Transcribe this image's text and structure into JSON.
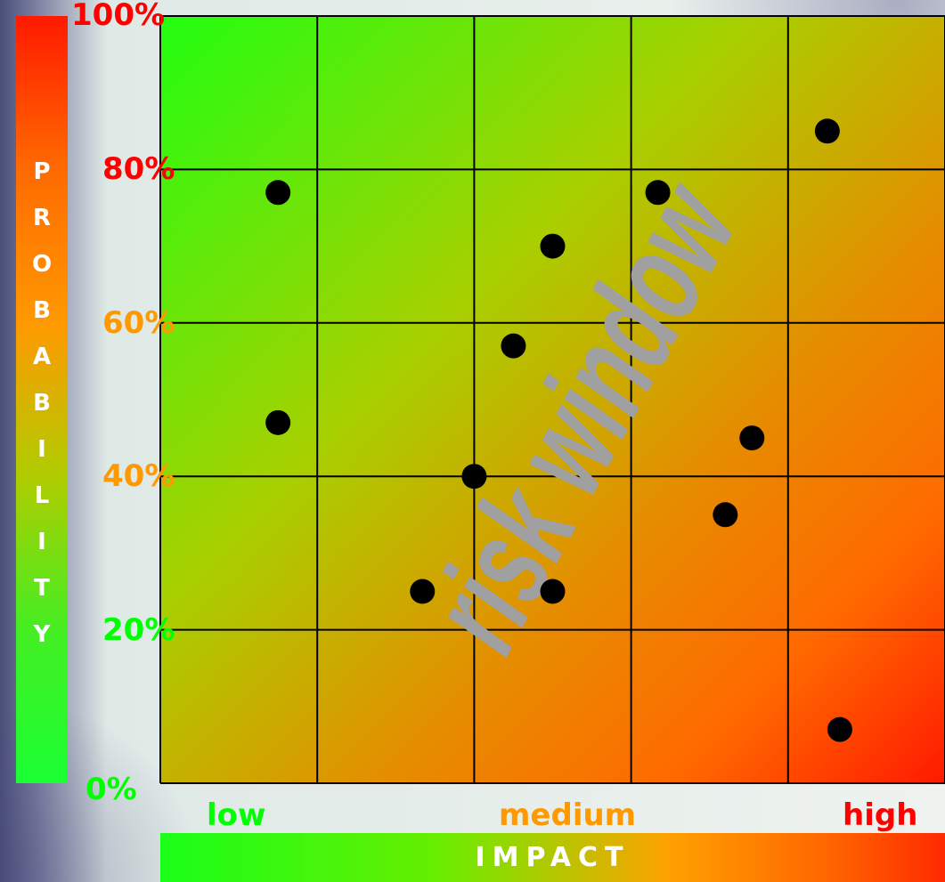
{
  "chart_data": {
    "type": "scatter",
    "xlim": [
      0,
      5
    ],
    "ylim": [
      0,
      100
    ],
    "grid": true,
    "ylabel": "PROBABILITY",
    "xlabel": "IMPACT",
    "y_ticks": [
      {
        "label": "100%",
        "value": 100,
        "color": "#ff0000"
      },
      {
        "label": "80%",
        "value": 80,
        "color": "#ff0000"
      },
      {
        "label": "60%",
        "value": 60,
        "color": "#ff9900"
      },
      {
        "label": "40%",
        "value": 40,
        "color": "#ff9900"
      },
      {
        "label": "20%",
        "value": 20,
        "color": "#00ff00"
      },
      {
        "label": "0%",
        "value": 0,
        "color": "#00ff00"
      }
    ],
    "x_labels": [
      {
        "label": "low",
        "color": "#00ff00"
      },
      {
        "label": "medium",
        "color": "#ff9900"
      },
      {
        "label": "high",
        "color": "#ff0000"
      }
    ],
    "annotation": "risk window",
    "points": [
      {
        "x": 0.75,
        "y": 77
      },
      {
        "x": 0.75,
        "y": 47
      },
      {
        "x": 1.67,
        "y": 25
      },
      {
        "x": 2.0,
        "y": 40
      },
      {
        "x": 2.25,
        "y": 57
      },
      {
        "x": 2.5,
        "y": 70
      },
      {
        "x": 2.5,
        "y": 25
      },
      {
        "x": 3.17,
        "y": 77
      },
      {
        "x": 3.6,
        "y": 35
      },
      {
        "x": 3.77,
        "y": 45
      },
      {
        "x": 4.25,
        "y": 85
      },
      {
        "x": 4.33,
        "y": 7
      }
    ],
    "colors": {
      "point": "#000000",
      "grid_line": "#000000",
      "watermark": "#a0a0a0"
    }
  }
}
